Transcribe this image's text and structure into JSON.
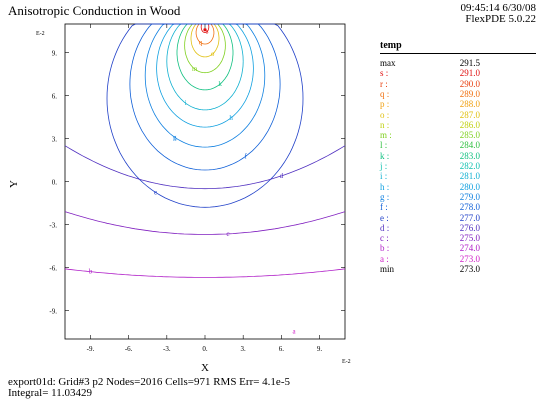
{
  "header": {
    "title": "Anisotropic Conduction in Wood",
    "time_date": "09:45:14 6/30/08",
    "version": "FlexPDE 5.0.22"
  },
  "footer": {
    "line1": "export01d:  Grid#3  p2  Nodes=2016 Cells=971 RMS Err= 4.1e-5",
    "line2": "Integral=  11.03429"
  },
  "chart_data": {
    "type": "contour",
    "xlabel": "X",
    "ylabel": "Y",
    "x_scale_label": "E-2",
    "y_scale_label": "E-2",
    "xlim": [
      -11,
      11
    ],
    "ylim": [
      -11,
      11
    ],
    "x_ticks": [
      "-9.",
      "-6.",
      "-3.",
      "0.",
      "3.",
      "6.",
      "9."
    ],
    "y_ticks": [
      "9.",
      "6.",
      "3.",
      "0.",
      "-3.",
      "-6.",
      "-9."
    ],
    "x_tick_values": [
      -9,
      -6,
      -3,
      0,
      3,
      6,
      9
    ],
    "y_tick_values": [
      9,
      6,
      3,
      0,
      -3,
      -6,
      -9
    ],
    "legend_title": "temp",
    "legend": [
      {
        "key": "max",
        "value": "291.5",
        "color": "#000000"
      },
      {
        "key": "s :",
        "value": "291.0",
        "color": "#e01010"
      },
      {
        "key": "r :",
        "value": "290.0",
        "color": "#e84010"
      },
      {
        "key": "q :",
        "value": "289.0",
        "color": "#f07010"
      },
      {
        "key": "p :",
        "value": "288.0",
        "color": "#f0a010"
      },
      {
        "key": "o :",
        "value": "287.0",
        "color": "#e0c010"
      },
      {
        "key": "n :",
        "value": "286.0",
        "color": "#c0d010"
      },
      {
        "key": "m :",
        "value": "285.0",
        "color": "#80d020"
      },
      {
        "key": "l :",
        "value": "284.0",
        "color": "#30c040"
      },
      {
        "key": "k :",
        "value": "283.0",
        "color": "#10c080"
      },
      {
        "key": "j :",
        "value": "282.0",
        "color": "#10c0b0"
      },
      {
        "key": "i :",
        "value": "281.0",
        "color": "#10b0d0"
      },
      {
        "key": "h :",
        "value": "280.0",
        "color": "#10a0e0"
      },
      {
        "key": "g :",
        "value": "279.0",
        "color": "#1080e0"
      },
      {
        "key": "f :",
        "value": "278.0",
        "color": "#1060d8"
      },
      {
        "key": "e :",
        "value": "277.0",
        "color": "#2040c8"
      },
      {
        "key": "d :",
        "value": "276.0",
        "color": "#5030c0"
      },
      {
        "key": "c :",
        "value": "275.0",
        "color": "#8020c0"
      },
      {
        "key": "b :",
        "value": "274.0",
        "color": "#b020c8"
      },
      {
        "key": "a :",
        "value": "273.0",
        "color": "#d020c8"
      },
      {
        "key": "min",
        "value": "273.0",
        "color": "#000000"
      }
    ],
    "closed_contours": [
      {
        "label": "s",
        "color": "#e01010",
        "cx": 0,
        "cy": 10.8,
        "rx": 0.3,
        "ry": 0.4
      },
      {
        "label": "q",
        "color": "#f07010",
        "cx": 0,
        "cy": 10.4,
        "rx": 0.7,
        "ry": 0.8
      },
      {
        "label": "o",
        "color": "#e0c010",
        "cx": 0,
        "cy": 10.0,
        "rx": 1.1,
        "ry": 1.3
      },
      {
        "label": "m",
        "color": "#80d020",
        "cx": 0,
        "cy": 9.5,
        "rx": 1.6,
        "ry": 1.9
      },
      {
        "label": "k",
        "color": "#10c080",
        "cx": 0,
        "cy": 9.0,
        "rx": 2.2,
        "ry": 2.6
      },
      {
        "label": "i",
        "color": "#10b0d0",
        "cx": 0,
        "cy": 8.4,
        "rx": 3.0,
        "ry": 3.4
      },
      {
        "label": "h",
        "color": "#10a0e0",
        "cx": 0,
        "cy": 7.9,
        "rx": 3.8,
        "ry": 4.1
      },
      {
        "label": "g",
        "color": "#1080e0",
        "cx": 0,
        "cy": 7.4,
        "rx": 4.7,
        "ry": 5.0
      },
      {
        "label": "f",
        "color": "#1060d8",
        "cx": 0,
        "cy": 6.8,
        "rx": 5.9,
        "ry": 6.0
      },
      {
        "label": "e",
        "color": "#2040c8",
        "cx": 0,
        "cy": 5.8,
        "rx": 7.7,
        "ry": 7.6
      }
    ],
    "open_contours": [
      {
        "label": "d",
        "color": "#5030c0",
        "y_edge": 2.5,
        "y_center": -0.5,
        "label_x": 6.0
      },
      {
        "label": "c",
        "color": "#8020c0",
        "y_edge": -2.1,
        "y_center": -3.7,
        "label_x": 1.8
      },
      {
        "label": "b",
        "color": "#b020c8",
        "y_edge": -6.1,
        "y_center": -6.7,
        "label_x": -9.0
      }
    ],
    "point_labels": [
      {
        "label": "a",
        "color": "#d020c8",
        "x": 7.0,
        "y": -10.6
      }
    ]
  }
}
